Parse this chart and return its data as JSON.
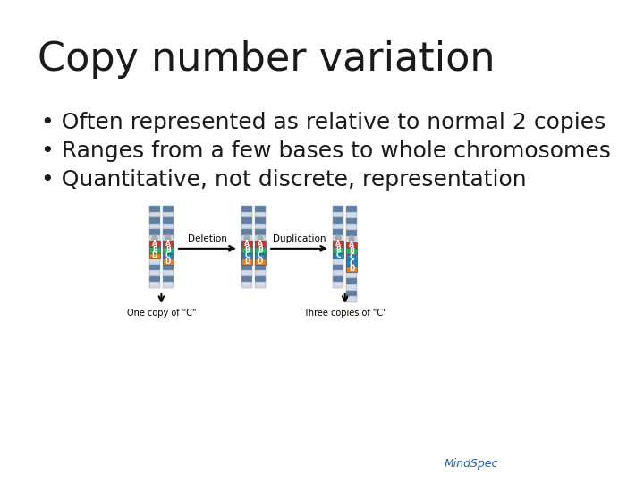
{
  "title": "Copy number variation",
  "bullets": [
    "Often represented as relative to normal 2 copies",
    "Ranges from a few bases to whole chromosomes",
    "Quantitative, not discrete, representation"
  ],
  "caption_left": "One copy of \"C\"",
  "caption_right": "Three copies of \"C\"",
  "arrow_label_left": "Deletion",
  "arrow_label_right": "Duplication",
  "mindspec_text": "MindSpec",
  "mindspec_color": "#1f5fa6",
  "background_color": "#ffffff",
  "title_fontsize": 32,
  "bullet_fontsize": 18,
  "title_color": "#1a1a1a",
  "bullet_color": "#1a1a1a",
  "blue_band": "#5b7fa6",
  "white_band": "#d0daea"
}
